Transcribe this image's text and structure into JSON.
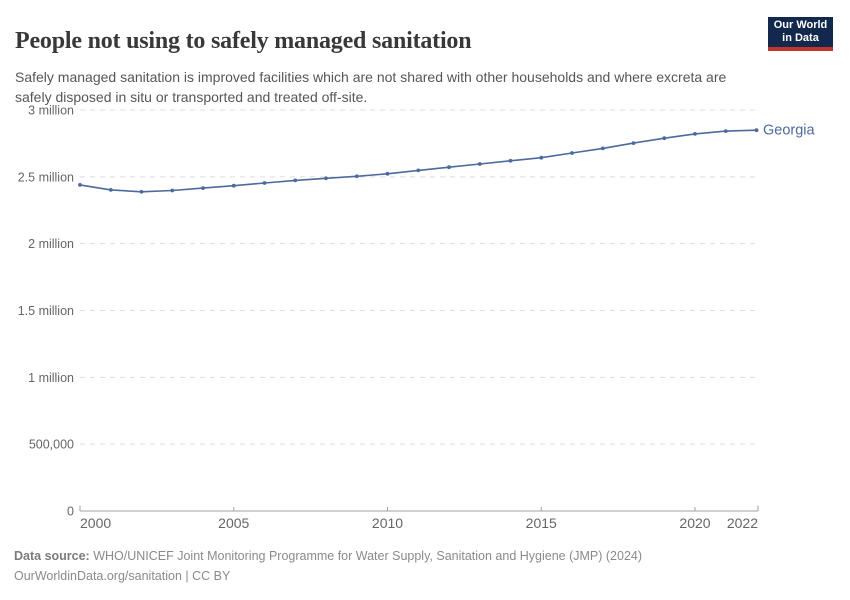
{
  "header": {
    "title": "People not using to safely managed sanitation",
    "subtitle": "Safely managed sanitation is improved facilities which are not shared with other households and where excreta are safely disposed in situ or transported and treated off-site."
  },
  "logo": {
    "line1": "Our World",
    "line2": "in Data",
    "background_color": "#12284C",
    "accent_color": "#C0362C"
  },
  "chart_data": {
    "type": "line",
    "title": "People not using to safely managed sanitation",
    "xlabel": "",
    "ylabel": "",
    "xlim": [
      2000,
      2022
    ],
    "ylim": [
      0,
      3000000
    ],
    "grid": "horizontal-dashed",
    "legend_position": "end-of-line-label",
    "x_ticks": [
      2000,
      2005,
      2010,
      2015,
      2020,
      2022
    ],
    "y_ticks": [
      {
        "value": 0,
        "label": "0"
      },
      {
        "value": 500000,
        "label": "500,000"
      },
      {
        "value": 1000000,
        "label": "1 million"
      },
      {
        "value": 1500000,
        "label": "1.5 million"
      },
      {
        "value": 2000000,
        "label": "2 million"
      },
      {
        "value": 2500000,
        "label": "2.5 million"
      },
      {
        "value": 3000000,
        "label": "3 million"
      }
    ],
    "x": [
      2000,
      2001,
      2002,
      2003,
      2004,
      2005,
      2006,
      2007,
      2008,
      2009,
      2010,
      2011,
      2012,
      2013,
      2014,
      2015,
      2016,
      2017,
      2018,
      2019,
      2020,
      2021,
      2022
    ],
    "series": [
      {
        "name": "Georgia",
        "color": "#4C6A9C",
        "values": [
          2440000,
          2402000,
          2388000,
          2398000,
          2416000,
          2434000,
          2454000,
          2473000,
          2489000,
          2504000,
          2523000,
          2548000,
          2572000,
          2596000,
          2620000,
          2643000,
          2678000,
          2713000,
          2752000,
          2789000,
          2821000,
          2842000,
          2849000
        ]
      }
    ],
    "style": {
      "gridline_color": "#dddddd",
      "axis_color": "#a1a1a1",
      "tick_label_color": "#666666"
    }
  },
  "footer": {
    "datasource_label": "Data source:",
    "datasource_text": " WHO/UNICEF Joint Monitoring Programme for Water Supply, Sanitation and Hygiene (JMP) (2024)",
    "license_text": "OurWorldinData.org/sanitation | CC BY"
  }
}
